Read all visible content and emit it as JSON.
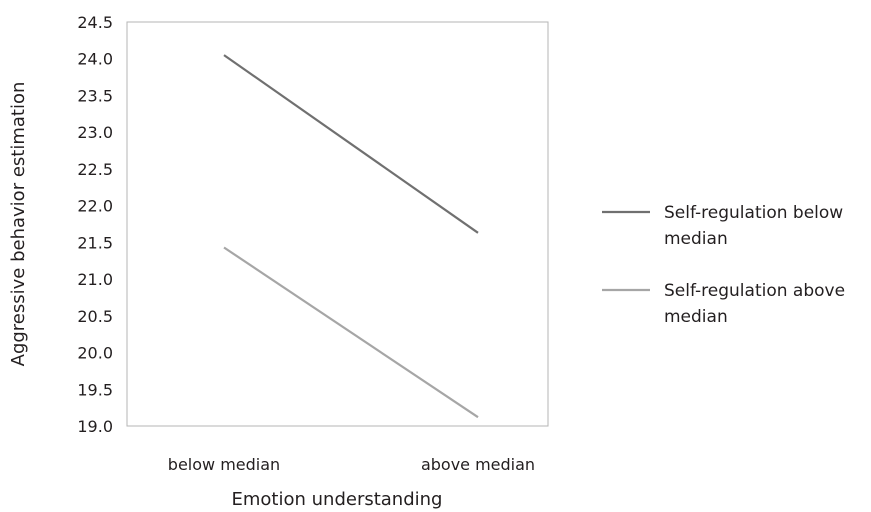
{
  "chart_data": {
    "type": "line",
    "title": "",
    "xlabel": "Emotion understanding",
    "ylabel": "Aggressive behavior estimation",
    "categories": [
      "below median",
      "above median"
    ],
    "ylim": [
      19.0,
      24.5
    ],
    "yticks": [
      "19.0",
      "19.5",
      "20.0",
      "20.5",
      "21.0",
      "21.5",
      "22.0",
      "22.5",
      "23.0",
      "23.5",
      "24.0",
      "24.5"
    ],
    "grid": false,
    "legend_position": "right",
    "series": [
      {
        "name": "Self-regulation below median",
        "legend_lines": [
          "Self-regulation below",
          "median"
        ],
        "values": [
          24.05,
          21.63
        ],
        "color": "#707070"
      },
      {
        "name": "Self-regulation above median",
        "legend_lines": [
          "Self-regulation above",
          "median"
        ],
        "values": [
          21.43,
          19.12
        ],
        "color": "#a6a6a6"
      }
    ]
  }
}
